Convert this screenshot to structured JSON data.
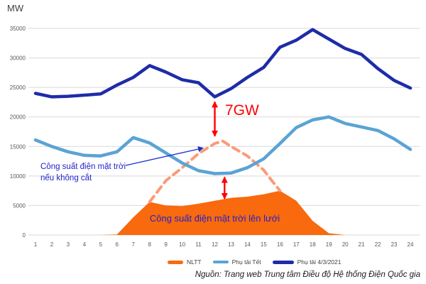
{
  "header": {
    "unit_label": "MW"
  },
  "annotations": {
    "gap_label": "7GW",
    "uncut_line1": "Công suất điện mặt trời",
    "uncut_line2": "nếu không cắt",
    "grid_label": "Công suất điện mặt trời lên lưới"
  },
  "footer": {
    "source": "Nguồn: Trang web Trung tâm Điều độ Hệ thống Điện Quốc gia"
  },
  "legend": [
    {
      "label": "NLTT",
      "color": "#F9690D",
      "swatch": "area"
    },
    {
      "label": "Phụ tải Tết",
      "color": "#5BA3D4",
      "swatch": "line"
    },
    {
      "label": "Phụ tải 4/3/2021",
      "color": "#1E2CA8",
      "swatch": "line-bold"
    }
  ],
  "colors": {
    "load_main": "#1E2CA8",
    "load_tet": "#5BA3D4",
    "solar_area": "#F9690D",
    "solar_potential_dashed": "#FB9B78",
    "arrow_red": "#FF0000",
    "annotation_blue": "#2222CC",
    "grid": "#D9D9D9",
    "axis_text": "#595959"
  },
  "chart_data": {
    "type": "combo (area + line)",
    "title": "",
    "ylabel": "MW",
    "xlabel": "",
    "ylim": [
      0,
      35000
    ],
    "yticks": [
      0,
      5000,
      10000,
      15000,
      20000,
      25000,
      30000,
      35000
    ],
    "x_hours": [
      1,
      2,
      3,
      4,
      5,
      6,
      7,
      8,
      9,
      10,
      11,
      12,
      13,
      14,
      15,
      16,
      17,
      18,
      19,
      20,
      21,
      22,
      23,
      24
    ],
    "grid": "horizontal gridlines on",
    "legend_position": "bottom",
    "series": [
      {
        "name": "NLTT",
        "type": "area",
        "color": "#F9690D",
        "values": [
          0,
          0,
          0,
          0,
          0,
          100,
          3000,
          5600,
          5000,
          4900,
          5300,
          5800,
          6300,
          6500,
          6900,
          7500,
          5800,
          2400,
          300,
          0,
          0,
          0,
          0,
          0
        ]
      },
      {
        "name": "Phụ tải Tết",
        "type": "line",
        "color": "#5BA3D4",
        "values": [
          16100,
          15000,
          14100,
          13500,
          13400,
          14100,
          16500,
          15600,
          13900,
          12200,
          10900,
          10400,
          10500,
          11400,
          12900,
          15500,
          18200,
          19500,
          20000,
          18900,
          18300,
          17700,
          16300,
          14500
        ]
      },
      {
        "name": "Phụ tải 4/3/2021",
        "type": "line",
        "color": "#1E2CA8",
        "values": [
          24000,
          23400,
          23500,
          23700,
          23900,
          25400,
          26700,
          28700,
          27600,
          26300,
          25800,
          23400,
          24800,
          26700,
          28400,
          31800,
          33000,
          34800,
          33200,
          31600,
          30600,
          28200,
          26200,
          24900
        ]
      }
    ],
    "potential_curve": {
      "name": "Công suất điện mặt trời nếu không cắt",
      "type": "dashed-line",
      "color": "#FB9B78",
      "points": [
        [
          8,
          5600
        ],
        [
          9,
          9200
        ],
        [
          10,
          11400
        ],
        [
          11,
          13800
        ],
        [
          12,
          15500
        ],
        [
          12.5,
          15900
        ],
        [
          13,
          15000
        ],
        [
          14,
          13400
        ],
        [
          15,
          11000
        ],
        [
          15.5,
          9200
        ],
        [
          16,
          7500
        ]
      ]
    },
    "gap_annotation": {
      "label": "7GW",
      "at_hour": 12,
      "from_mw": 23400,
      "to_mw": 15900
    },
    "curtail_annotation": {
      "at_hour": 12.6,
      "from_mw": 10400,
      "to_mw": 5900
    }
  }
}
